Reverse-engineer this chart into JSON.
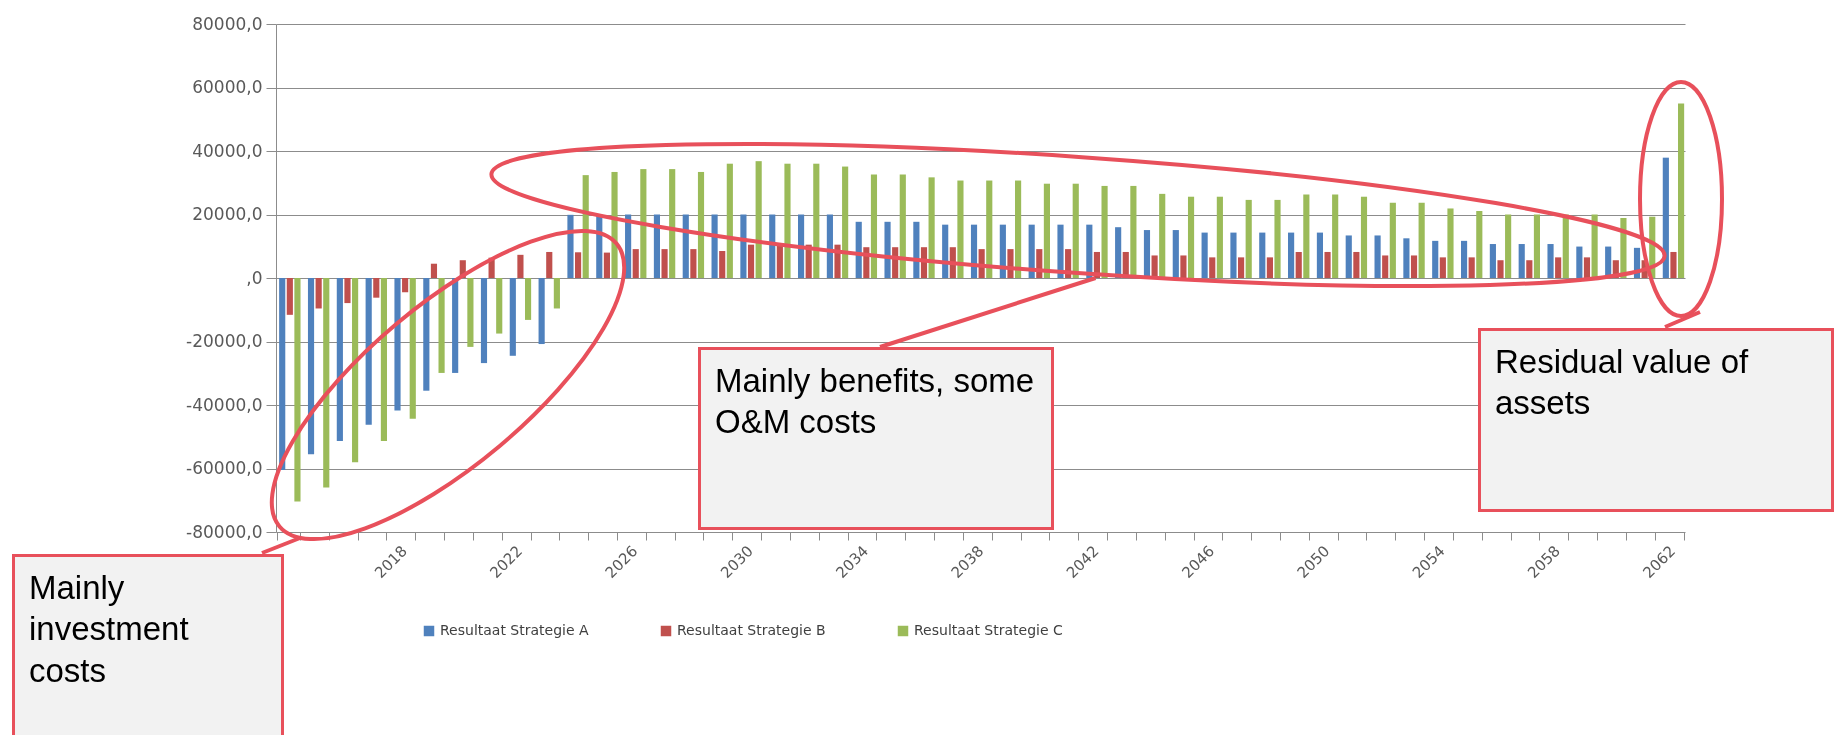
{
  "chart_data": {
    "type": "bar",
    "categories": [
      null,
      null,
      null,
      null,
      "2018",
      null,
      null,
      null,
      "2022",
      null,
      null,
      null,
      "2026",
      null,
      null,
      null,
      "2030",
      null,
      null,
      null,
      "2034",
      null,
      null,
      null,
      "2038",
      null,
      null,
      null,
      "2042",
      null,
      null,
      null,
      "2046",
      null,
      null,
      null,
      "2050",
      null,
      null,
      null,
      "2054",
      null,
      null,
      null,
      "2058",
      null,
      null,
      null,
      "2062"
    ],
    "series": [
      {
        "name": "Resultaat Strategie A",
        "color": "#4f81bd",
        "values": [
          -60500,
          -55500,
          -51300,
          -46200,
          -41700,
          -35500,
          -29900,
          -26800,
          -24500,
          -20800,
          19900,
          20000,
          20000,
          20000,
          20000,
          20000,
          20000,
          20000,
          20000,
          20000,
          17700,
          17700,
          17700,
          16800,
          16800,
          16800,
          16800,
          16800,
          16800,
          16000,
          15100,
          15100,
          14300,
          14300,
          14300,
          14300,
          14300,
          13400,
          13400,
          12500,
          11700,
          11700,
          10700,
          10700,
          10700,
          9900,
          9900,
          9500,
          37900
        ]
      },
      {
        "name": "Resultaat Strategie B",
        "color": "#c0504d",
        "values": [
          -11600,
          -9600,
          -7900,
          -6200,
          -4500,
          4500,
          5600,
          6400,
          7300,
          8200,
          8100,
          8000,
          9100,
          9100,
          9100,
          8500,
          10500,
          10500,
          10500,
          10500,
          9700,
          9700,
          9700,
          9700,
          9100,
          9100,
          9100,
          9100,
          8200,
          8200,
          7100,
          7100,
          6500,
          6500,
          6500,
          8200,
          8200,
          8200,
          7100,
          7100,
          6500,
          6500,
          5600,
          5600,
          6500,
          6500,
          5600,
          5600,
          8200
        ]
      },
      {
        "name": "Resultaat Strategie C",
        "color": "#9bbb59",
        "values": [
          -70400,
          -66000,
          -58000,
          -51300,
          -44300,
          -29900,
          -21700,
          -17500,
          -13200,
          -9600,
          32400,
          33400,
          34300,
          34300,
          33400,
          36000,
          36800,
          36000,
          36000,
          35100,
          32600,
          32600,
          31700,
          30700,
          30700,
          30700,
          29700,
          29700,
          29000,
          29000,
          26500,
          25600,
          25600,
          24600,
          24600,
          26300,
          26300,
          25600,
          23700,
          23700,
          21900,
          21100,
          20000,
          20000,
          20000,
          20000,
          18900,
          19300,
          55000
        ]
      }
    ],
    "ylim": [
      -80000,
      80000
    ],
    "yticks": [
      {
        "value": -80000,
        "label": "-80000,0"
      },
      {
        "value": -60000,
        "label": "-60000,0"
      },
      {
        "value": -40000,
        "label": "-40000,0"
      },
      {
        "value": -20000,
        "label": "-20000,0"
      },
      {
        "value": 0,
        "label": ",0"
      },
      {
        "value": 20000,
        "label": "20000,0"
      },
      {
        "value": 40000,
        "label": "40000,0"
      },
      {
        "value": 60000,
        "label": "60000,0"
      },
      {
        "value": 80000,
        "label": "80000,0"
      }
    ],
    "grid": "y",
    "legend": "bottom",
    "annotations": [
      "Mainly investment costs",
      {
        "text": "Mainly benefits, some O&M costs",
        "x": "2042",
        "y": 0
      },
      "Residual value of assets"
    ]
  }
}
